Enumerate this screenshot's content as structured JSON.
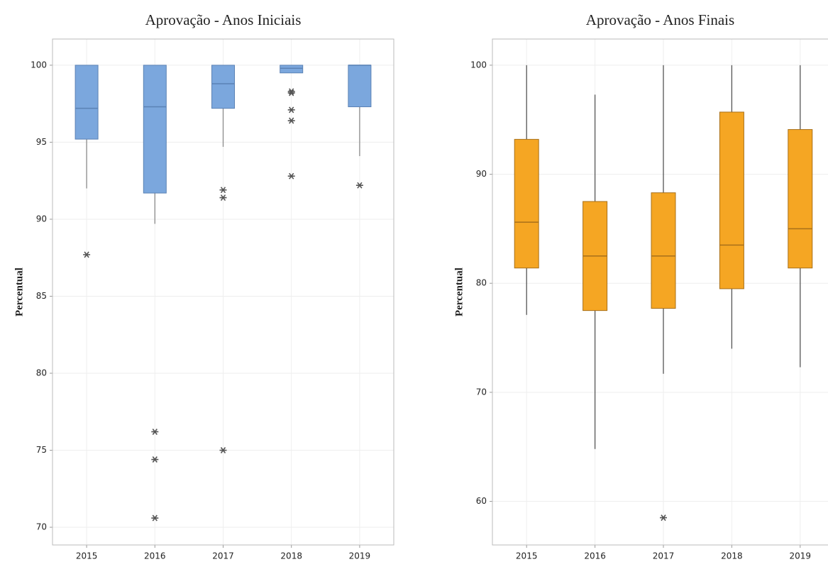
{
  "chart_data": [
    {
      "type": "box",
      "title": "Aprovação - Anos Iniciais",
      "y_label": "Percentual",
      "categories": [
        "2015",
        "2016",
        "2017",
        "2018",
        "2019"
      ],
      "boxes": [
        {
          "whislo": 92.0,
          "q1": 95.2,
          "med": 97.2,
          "q3": 100,
          "whishi": 100,
          "fliers": [
            87.7
          ]
        },
        {
          "whislo": 89.7,
          "q1": 91.7,
          "med": 97.3,
          "q3": 100,
          "whishi": 100,
          "fliers": [
            76.2,
            74.4,
            70.6
          ]
        },
        {
          "whislo": 94.7,
          "q1": 97.2,
          "med": 98.8,
          "q3": 100,
          "whishi": 100,
          "fliers": [
            91.9,
            91.4,
            75.0
          ]
        },
        {
          "whislo": 99.5,
          "q1": 99.5,
          "med": 99.8,
          "q3": 100,
          "whishi": 100,
          "fliers": [
            98.3,
            98.2,
            97.1,
            96.4,
            92.8
          ]
        },
        {
          "whislo": 94.1,
          "q1": 97.3,
          "med": 100,
          "q3": 100,
          "whishi": 100,
          "fliers": [
            92.2
          ]
        }
      ],
      "color": "#7ba7dd",
      "edge_color": "#5b82b5",
      "whisker_color": "#8a8a8a",
      "ylim": [
        68.85,
        101.7
      ],
      "yticks": [
        70,
        75,
        80,
        85,
        90,
        95,
        100
      ],
      "grid": true
    },
    {
      "type": "box",
      "title": "Aprovação - Anos Finais",
      "y_label": "Percentual",
      "categories": [
        "2015",
        "2016",
        "2017",
        "2018",
        "2019"
      ],
      "boxes": [
        {
          "whislo": 77.1,
          "q1": 81.4,
          "med": 85.6,
          "q3": 93.2,
          "whishi": 100,
          "fliers": []
        },
        {
          "whislo": 64.8,
          "q1": 77.5,
          "med": 82.5,
          "q3": 87.5,
          "whishi": 97.3,
          "fliers": []
        },
        {
          "whislo": 71.7,
          "q1": 77.7,
          "med": 82.5,
          "q3": 88.3,
          "whishi": 100,
          "fliers": [
            58.5
          ]
        },
        {
          "whislo": 74.0,
          "q1": 79.5,
          "med": 83.5,
          "q3": 95.7,
          "whishi": 100,
          "fliers": []
        },
        {
          "whislo": 72.3,
          "q1": 81.4,
          "med": 85.0,
          "q3": 94.1,
          "whishi": 100,
          "fliers": []
        }
      ],
      "color": "#f5a623",
      "edge_color": "#a8701a",
      "whisker_color": "#555555",
      "ylim": [
        56,
        102.4
      ],
      "yticks": [
        60,
        70,
        80,
        90,
        100
      ],
      "grid": true
    }
  ]
}
